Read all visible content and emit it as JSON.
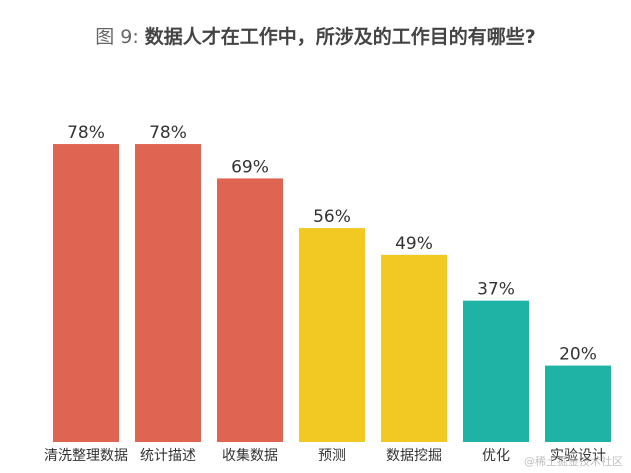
{
  "chart_data": {
    "type": "bar",
    "title_prefix": "图 9:",
    "title": "数据人才在工作中，所涉及的工作目的有哪些?",
    "categories": [
      "清洗整理数据",
      "统计描述",
      "收集数据",
      "预测",
      "数据挖掘",
      "优化",
      "实验设计"
    ],
    "values": [
      78,
      78,
      69,
      56,
      49,
      37,
      20
    ],
    "data_labels": [
      "78%",
      "78%",
      "69%",
      "56%",
      "49%",
      "37%",
      "20%"
    ],
    "bar_colors": [
      "#e06452",
      "#e06452",
      "#e06452",
      "#f2c823",
      "#f2c823",
      "#1fb3a6",
      "#1fb3a6"
    ],
    "ylim": [
      0,
      100
    ],
    "unit": "%",
    "grid": false,
    "legend": "none"
  },
  "watermark": "@稀土掘金技术社区"
}
